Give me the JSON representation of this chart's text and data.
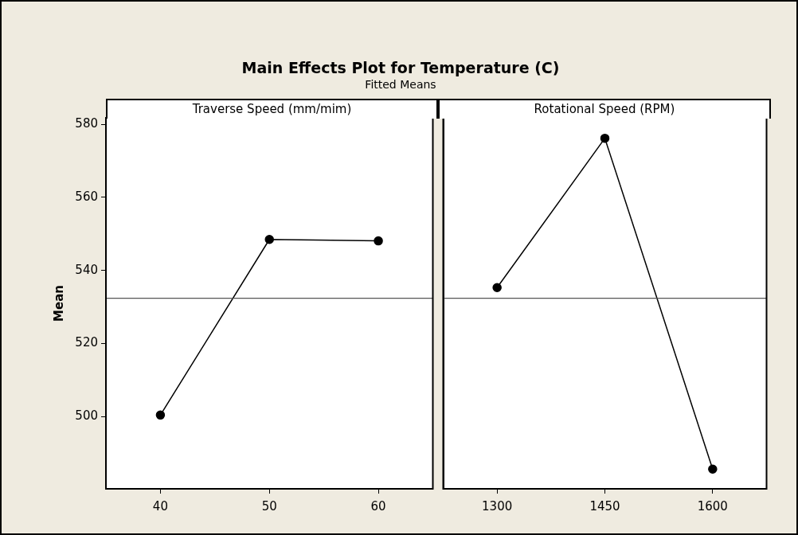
{
  "chart_data": [
    {
      "type": "line",
      "title": "Main Effects Plot for Temperature (C)",
      "subtitle": "Fitted Means",
      "x2label": "Traverse Speed (mm/mim)",
      "ylabel": "Mean",
      "categories": [
        "40",
        "50",
        "60"
      ],
      "series": [
        {
          "color": "#000000",
          "values": [
            500.4,
            548.5,
            548.1
          ]
        }
      ],
      "ylim": [
        480.2,
        581.8
      ],
      "yticks": [
        500,
        520,
        540,
        560,
        580
      ],
      "ref_lines": [
        {
          "axis": "y",
          "value": 532.4,
          "color": "#555555"
        }
      ],
      "marker": "circle",
      "line_style": "solid",
      "grid": false,
      "legend": false
    },
    {
      "type": "line",
      "x2label": "Rotational Speed (RPM)",
      "categories": [
        "1300",
        "1450",
        "1600"
      ],
      "series": [
        {
          "color": "#000000",
          "values": [
            535.3,
            576.2,
            485.6
          ]
        }
      ],
      "ylim": [
        480.2,
        581.8
      ],
      "yticks": [
        500,
        520,
        540,
        560,
        580
      ],
      "ref_lines": [
        {
          "axis": "y",
          "value": 532.4,
          "color": "#555555"
        }
      ],
      "marker": "circle",
      "line_style": "solid",
      "grid": false,
      "legend": false,
      "tick_labels": "x"
    }
  ]
}
